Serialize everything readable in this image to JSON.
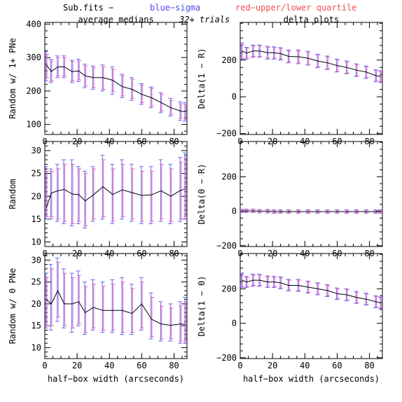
{
  "header": {
    "left": "Sub.fits  −",
    "blue": "blue−sigma",
    "red": "red−upper/lower quartile",
    "trials": "32+ trials",
    "blue_color": "#4a4ae8",
    "red_color": "#f05050"
  },
  "column_titles": {
    "left": "average medians",
    "right": "delta plots"
  },
  "colors": {
    "line": "#000000",
    "sigma": "#6a6af0",
    "quartile": "#e060c0"
  },
  "chart_data": [
    {
      "type": "line",
      "panel": "top-left",
      "title": "average medians",
      "xlabel": "",
      "ylabel": "Random w/ 1+ PNe",
      "xlim": [
        0,
        88
      ],
      "ylim": [
        70,
        405
      ],
      "xticks": [
        0,
        20,
        40,
        60,
        80
      ],
      "yticks": [
        100,
        200,
        300,
        400
      ],
      "x": [
        1,
        4,
        8,
        12,
        17,
        21,
        25,
        30,
        36,
        42,
        48,
        54,
        60,
        66,
        72,
        78,
        84,
        87
      ],
      "y": [
        278,
        258,
        272,
        272,
        258,
        260,
        245,
        240,
        240,
        232,
        213,
        205,
        190,
        180,
        165,
        150,
        140,
        138
      ],
      "sigma_low": [
        230,
        225,
        240,
        240,
        225,
        228,
        210,
        205,
        200,
        190,
        180,
        172,
        160,
        150,
        135,
        125,
        112,
        110
      ],
      "sigma_high": [
        318,
        295,
        305,
        305,
        292,
        295,
        280,
        275,
        278,
        272,
        250,
        240,
        222,
        212,
        195,
        178,
        168,
        165
      ],
      "quart_low": [
        240,
        230,
        245,
        245,
        230,
        233,
        215,
        210,
        205,
        198,
        185,
        178,
        165,
        155,
        140,
        130,
        118,
        115
      ],
      "quart_high": [
        310,
        290,
        300,
        300,
        288,
        290,
        275,
        270,
        272,
        265,
        245,
        235,
        218,
        208,
        190,
        172,
        162,
        160
      ]
    },
    {
      "type": "line",
      "panel": "middle-left",
      "xlabel": "",
      "ylabel": "Random",
      "xlim": [
        0,
        88
      ],
      "ylim": [
        9,
        32
      ],
      "xticks": [
        0,
        20,
        40,
        60,
        80
      ],
      "yticks": [
        10,
        15,
        20,
        25,
        30
      ],
      "x": [
        1,
        4,
        8,
        12,
        17,
        21,
        25,
        30,
        36,
        42,
        48,
        54,
        60,
        66,
        72,
        78,
        84,
        87
      ],
      "y": [
        17.5,
        20.7,
        21.2,
        21.5,
        20.5,
        20.4,
        19.0,
        20.3,
        22.1,
        20.4,
        21.4,
        20.8,
        20.2,
        20.3,
        21.2,
        20.0,
        21.3,
        21.6
      ],
      "sigma_low": [
        15.0,
        15.0,
        14.5,
        14.0,
        13.5,
        14.0,
        13.0,
        14.5,
        15.0,
        14.0,
        15.0,
        14.5,
        14.0,
        14.0,
        14.5,
        14.0,
        14.5,
        15.0
      ],
      "sigma_high": [
        26.5,
        26.0,
        27.0,
        28.0,
        28.0,
        26.5,
        25.5,
        26.5,
        29.0,
        27.0,
        28.0,
        27.0,
        26.5,
        26.5,
        28.0,
        27.0,
        28.5,
        29.5
      ],
      "quart_low": [
        15.5,
        15.5,
        15.0,
        14.5,
        14.0,
        14.5,
        13.5,
        15.0,
        15.5,
        14.5,
        15.5,
        15.0,
        14.5,
        14.5,
        15.0,
        14.5,
        15.0,
        15.5
      ],
      "quart_high": [
        25.5,
        25.5,
        26.0,
        27.0,
        27.0,
        26.0,
        25.0,
        26.0,
        28.0,
        26.0,
        27.0,
        26.0,
        25.5,
        25.5,
        27.0,
        26.0,
        27.5,
        28.5
      ]
    },
    {
      "type": "line",
      "panel": "bottom-left",
      "xlabel": "half−box width (arcseconds)",
      "ylabel": "Random w/ 0 PNe",
      "xlim": [
        0,
        88
      ],
      "ylim": [
        7.5,
        31.5
      ],
      "xticks": [
        0,
        20,
        40,
        60,
        80
      ],
      "yticks": [
        10,
        15,
        20,
        25,
        30
      ],
      "x": [
        1,
        4,
        8,
        12,
        17,
        21,
        25,
        30,
        36,
        42,
        48,
        54,
        60,
        66,
        72,
        78,
        84,
        87
      ],
      "y": [
        21.0,
        20.0,
        23.0,
        20.0,
        20.0,
        20.5,
        18.0,
        19.2,
        18.5,
        18.5,
        18.5,
        17.8,
        20.0,
        16.5,
        15.4,
        15.1,
        15.4,
        15.3
      ],
      "sigma_low": [
        14.5,
        14.0,
        16.0,
        14.5,
        13.5,
        15.0,
        13.0,
        14.0,
        13.5,
        13.5,
        13.0,
        13.0,
        14.0,
        12.0,
        11.5,
        11.5,
        11.0,
        11.0
      ],
      "sigma_high": [
        27.0,
        29.0,
        30.5,
        28.0,
        27.0,
        27.5,
        25.0,
        25.5,
        25.0,
        25.5,
        26.0,
        24.5,
        26.0,
        22.5,
        20.5,
        20.0,
        20.5,
        21.5
      ],
      "quart_low": [
        15.0,
        15.0,
        17.0,
        15.0,
        14.5,
        15.5,
        13.5,
        14.5,
        14.0,
        14.0,
        13.5,
        13.5,
        14.5,
        12.5,
        12.0,
        12.0,
        11.5,
        11.5
      ],
      "quart_high": [
        26.0,
        28.0,
        29.5,
        27.0,
        26.0,
        26.5,
        24.0,
        24.5,
        24.0,
        24.5,
        25.0,
        23.5,
        25.0,
        21.5,
        19.5,
        19.0,
        19.5,
        20.5
      ]
    },
    {
      "type": "line",
      "panel": "top-right",
      "title": "delta plots",
      "xlabel": "",
      "ylabel": "Delta(1 − R)",
      "xlim": [
        0,
        88
      ],
      "ylim": [
        -205,
        405
      ],
      "xticks": [
        0,
        20,
        40,
        60,
        80
      ],
      "yticks": [
        -200,
        0,
        200
      ],
      "x": [
        1,
        4,
        8,
        12,
        17,
        21,
        25,
        30,
        36,
        42,
        48,
        54,
        60,
        66,
        72,
        78,
        84,
        87
      ],
      "y": [
        250,
        238,
        250,
        250,
        240,
        240,
        235,
        220,
        218,
        210,
        195,
        185,
        170,
        160,
        145,
        135,
        115,
        110
      ],
      "sigma_low": [
        205,
        205,
        215,
        215,
        205,
        205,
        200,
        185,
        180,
        172,
        158,
        148,
        135,
        125,
        110,
        100,
        82,
        78
      ],
      "sigma_high": [
        295,
        270,
        282,
        282,
        275,
        272,
        268,
        255,
        255,
        248,
        232,
        222,
        205,
        195,
        180,
        168,
        148,
        142
      ],
      "quart_low": [
        210,
        210,
        220,
        220,
        210,
        210,
        205,
        190,
        185,
        178,
        163,
        153,
        140,
        130,
        115,
        105,
        88,
        84
      ],
      "quart_high": [
        288,
        265,
        278,
        278,
        270,
        268,
        263,
        250,
        250,
        242,
        227,
        217,
        200,
        190,
        175,
        163,
        143,
        137
      ]
    },
    {
      "type": "line",
      "panel": "middle-right",
      "xlabel": "",
      "ylabel": "Delta(0 − R)",
      "xlim": [
        0,
        88
      ],
      "ylim": [
        -205,
        405
      ],
      "xticks": [
        0,
        20,
        40,
        60,
        80
      ],
      "yticks": [
        -200,
        0,
        200
      ],
      "x": [
        1,
        4,
        8,
        12,
        17,
        21,
        25,
        30,
        36,
        42,
        48,
        54,
        60,
        66,
        72,
        78,
        84,
        87
      ],
      "y": [
        2,
        2,
        2,
        0,
        0,
        -2,
        -2,
        -2,
        -2,
        -2,
        -2,
        -2,
        -2,
        -2,
        -2,
        -2,
        -2,
        -2
      ],
      "sigma_low": [
        -8,
        -8,
        -8,
        -10,
        -10,
        -12,
        -12,
        -12,
        -12,
        -12,
        -12,
        -12,
        -12,
        -12,
        -12,
        -12,
        -12,
        -12
      ],
      "sigma_high": [
        12,
        12,
        12,
        10,
        10,
        8,
        8,
        8,
        8,
        8,
        8,
        8,
        8,
        8,
        8,
        8,
        8,
        8
      ],
      "quart_low": [
        -6,
        -6,
        -6,
        -8,
        -8,
        -10,
        -10,
        -10,
        -10,
        -10,
        -10,
        -10,
        -10,
        -10,
        -10,
        -10,
        -10,
        -10
      ],
      "quart_high": [
        10,
        10,
        10,
        8,
        8,
        6,
        6,
        6,
        6,
        6,
        6,
        6,
        6,
        6,
        6,
        6,
        6,
        6
      ]
    },
    {
      "type": "line",
      "panel": "bottom-right",
      "xlabel": "half−box width (arcseconds)",
      "ylabel": "Delta(1 − 0)",
      "xlim": [
        0,
        88
      ],
      "ylim": [
        -205,
        405
      ],
      "xticks": [
        0,
        20,
        40,
        60,
        80
      ],
      "yticks": [
        -200,
        0,
        200
      ],
      "x": [
        1,
        4,
        8,
        12,
        17,
        21,
        25,
        30,
        36,
        42,
        48,
        54,
        60,
        66,
        72,
        78,
        84,
        87
      ],
      "y": [
        250,
        240,
        250,
        250,
        240,
        240,
        235,
        220,
        220,
        210,
        200,
        190,
        172,
        165,
        150,
        140,
        125,
        118
      ],
      "sigma_low": [
        208,
        208,
        215,
        215,
        208,
        208,
        200,
        188,
        185,
        175,
        165,
        155,
        138,
        130,
        115,
        105,
        90,
        85
      ],
      "sigma_high": [
        292,
        272,
        285,
        285,
        275,
        272,
        270,
        255,
        255,
        245,
        235,
        225,
        205,
        200,
        185,
        175,
        160,
        152
      ],
      "quart_low": [
        213,
        213,
        220,
        220,
        213,
        213,
        205,
        193,
        190,
        180,
        170,
        160,
        143,
        135,
        120,
        110,
        95,
        90
      ],
      "quart_high": [
        287,
        267,
        280,
        280,
        270,
        267,
        265,
        250,
        250,
        240,
        230,
        220,
        200,
        195,
        180,
        170,
        155,
        147
      ]
    }
  ]
}
